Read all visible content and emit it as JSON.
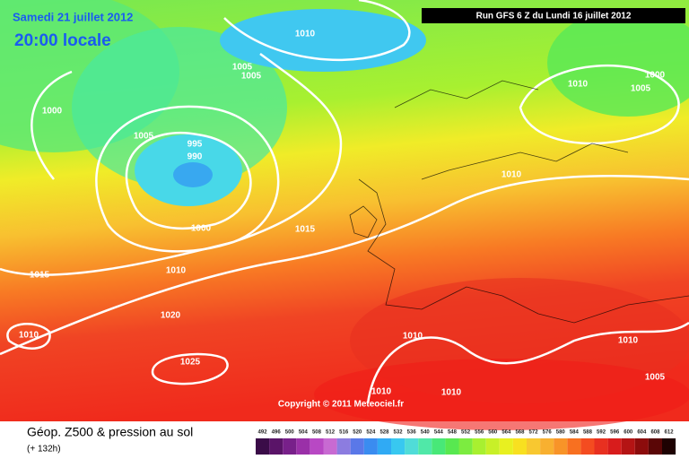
{
  "header": {
    "date": "Samedi 21 juillet 2012",
    "time": "20:00 locale",
    "run": "Run GFS 6 Z du Lundi 16 juillet 2012"
  },
  "copyright": "Copyright © 2011 Meteociel.fr",
  "footer": {
    "title": "Géop. Z500 & pression au sol",
    "lead": "(+ 132h)"
  },
  "isobars": [
    {
      "label": "1010"
    },
    {
      "label": "1005"
    },
    {
      "label": "1005"
    },
    {
      "label": "1000"
    },
    {
      "label": "1005"
    },
    {
      "label": "995"
    },
    {
      "label": "990"
    },
    {
      "label": "1000"
    },
    {
      "label": "1015"
    },
    {
      "label": "1010"
    },
    {
      "label": "1015"
    },
    {
      "label": "1020"
    },
    {
      "label": "1010"
    },
    {
      "label": "1025"
    },
    {
      "label": "1010"
    },
    {
      "label": "1010"
    },
    {
      "label": "1005"
    },
    {
      "label": "1000"
    },
    {
      "label": "1010"
    },
    {
      "label": "1010"
    },
    {
      "label": "1005"
    },
    {
      "label": "1010"
    },
    {
      "label": "1010"
    }
  ],
  "legend": {
    "levels": [
      "492",
      "496",
      "500",
      "504",
      "508",
      "512",
      "516",
      "520",
      "524",
      "528",
      "532",
      "536",
      "540",
      "544",
      "548",
      "552",
      "556",
      "560",
      "564",
      "568",
      "572",
      "576",
      "580",
      "584",
      "588",
      "592",
      "596",
      "600",
      "604",
      "608",
      "612"
    ],
    "colors": [
      "#3a0c48",
      "#5a1468",
      "#78208a",
      "#9a30a8",
      "#b848c4",
      "#c86ad2",
      "#8c7ce0",
      "#5a78e8",
      "#3a8cf0",
      "#30aaf4",
      "#38c8f0",
      "#50dcd8",
      "#50e8a8",
      "#48e878",
      "#58e850",
      "#7cec40",
      "#a8f030",
      "#c8f028",
      "#e8f020",
      "#f8e020",
      "#f8c830",
      "#f8b030",
      "#f89428",
      "#f87020",
      "#f44c20",
      "#e83020",
      "#d81c1c",
      "#b41414",
      "#8c0c0c",
      "#5a0606",
      "#1e0202"
    ]
  }
}
